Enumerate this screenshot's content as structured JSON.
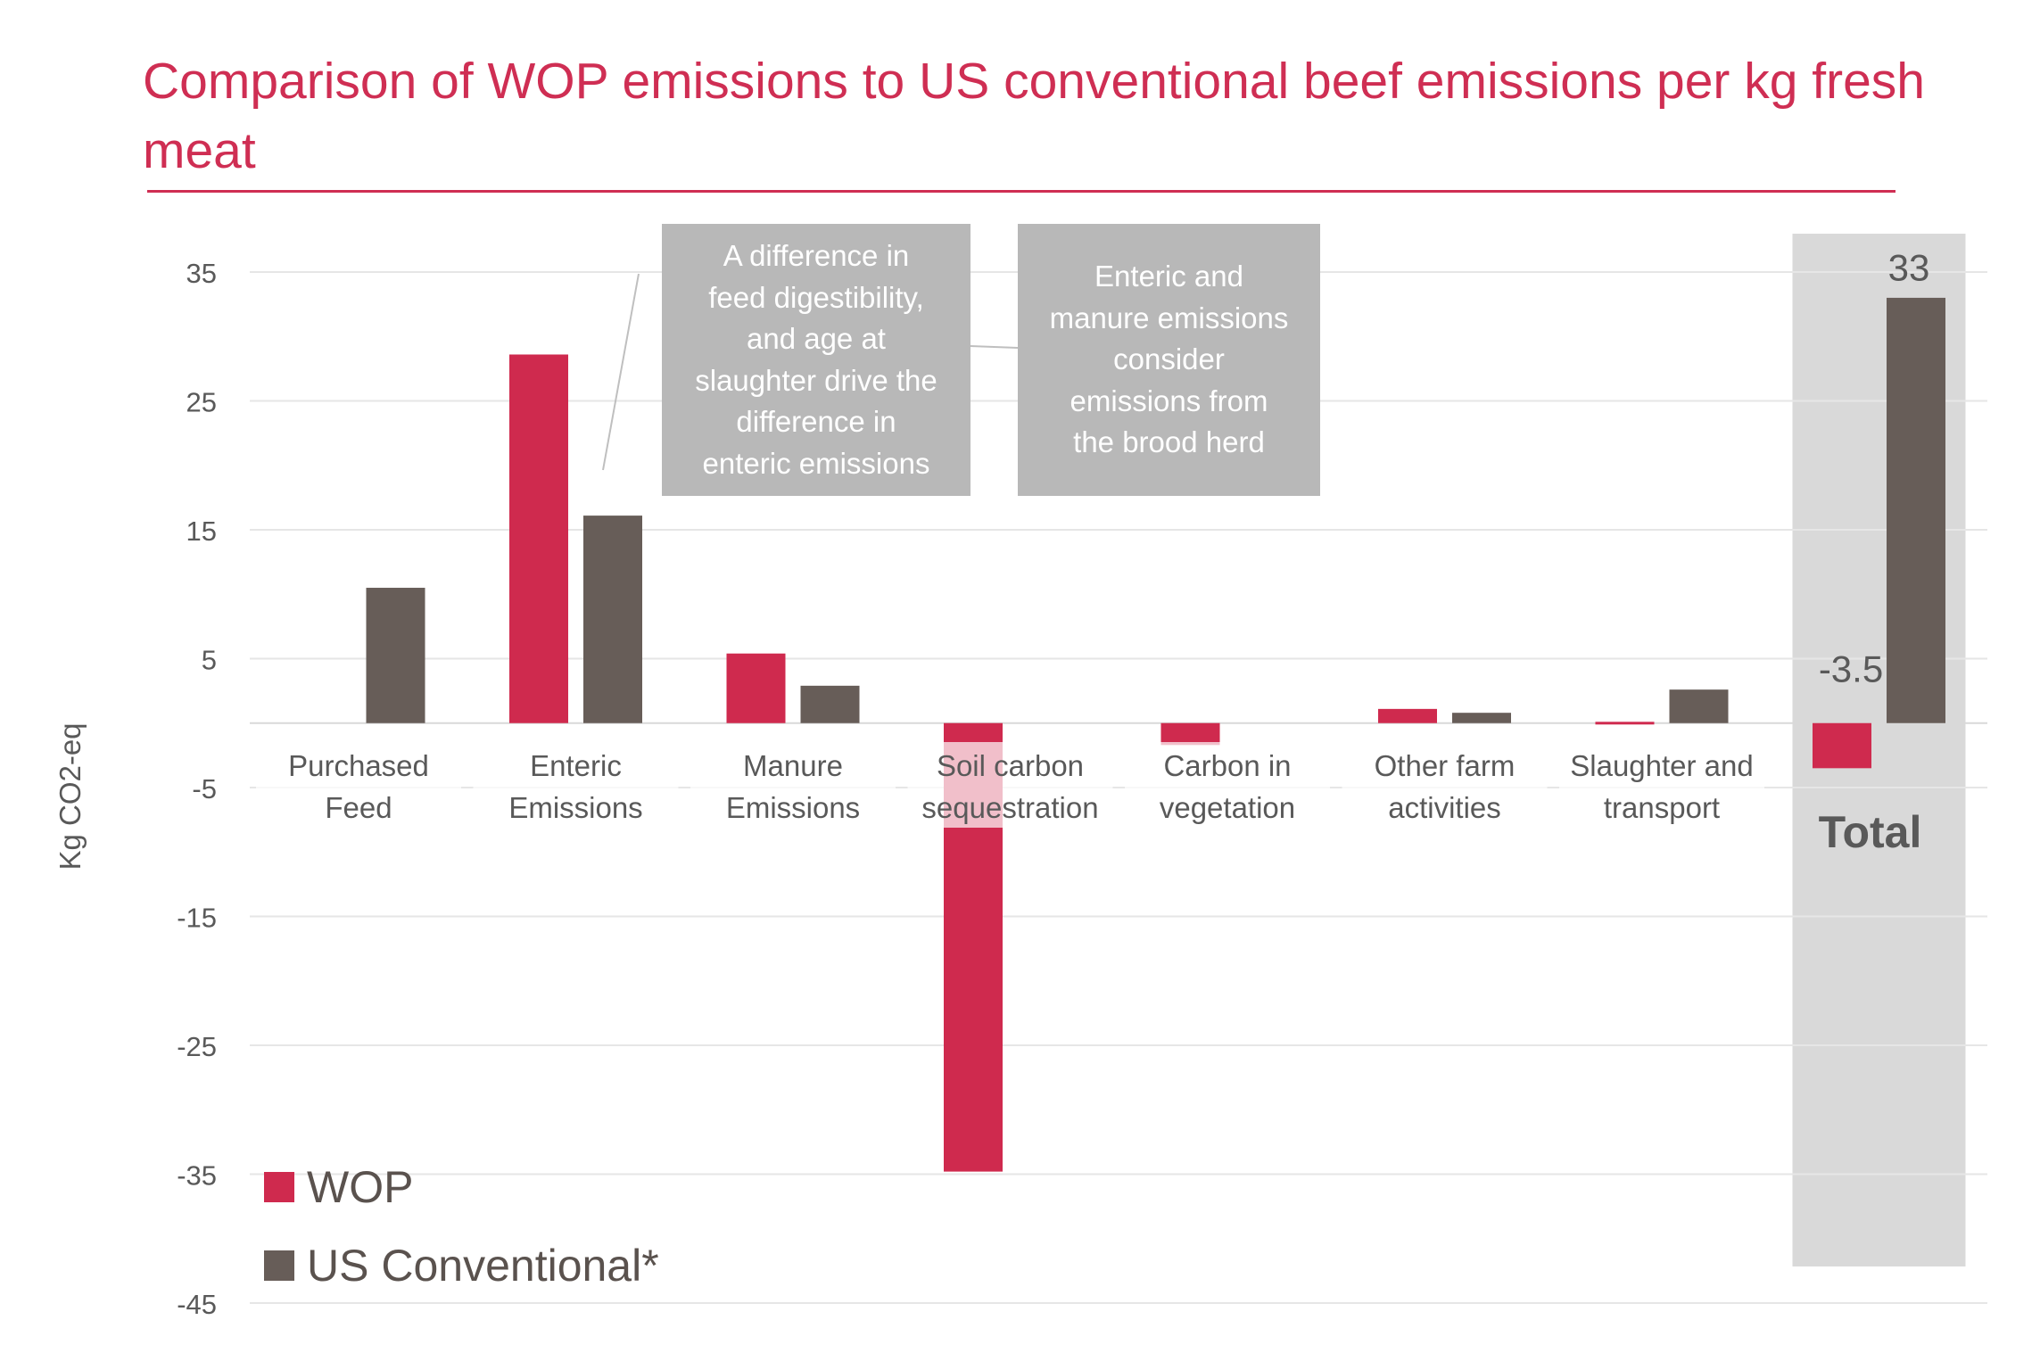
{
  "title": "Comparison of WOP emissions to US conventional beef emissions per kg fresh meat",
  "colors": {
    "wop": "#cf2a4e",
    "us": "#675d58",
    "accent": "#cf2e53",
    "total_bg": "#d9d9d9",
    "callout_bg": "#b8b8b8"
  },
  "callouts": [
    {
      "text": "A difference in\nfeed digestibility,\nand age at\nslaughter drive the\ndifference in\nenteric emissions"
    },
    {
      "text": "Enteric and\nmanure emissions\nconsider\nemissions from\nthe brood herd"
    }
  ],
  "legend": [
    {
      "label": "WOP",
      "color": "#cf2a4e"
    },
    {
      "label": "US Conventional*",
      "color": "#675d58"
    }
  ],
  "total_label": "Total",
  "chart_data": {
    "type": "bar",
    "ylabel": "Kg CO2-eq",
    "ylim": [
      -45,
      35
    ],
    "yticks": [
      35,
      25,
      15,
      5,
      -5,
      -15,
      -25,
      -35,
      -45
    ],
    "categories": [
      [
        "Purchased",
        "Feed"
      ],
      [
        "Enteric",
        "Emissions"
      ],
      [
        "Manure",
        "Emissions"
      ],
      [
        "Soil carbon",
        "sequestration"
      ],
      [
        "Carbon in",
        "vegetation"
      ],
      [
        "Other farm",
        "activities"
      ],
      [
        "Slaughter and",
        "transport"
      ],
      [
        "Total"
      ]
    ],
    "series": [
      {
        "name": "WOP",
        "values": [
          0,
          28.6,
          5.4,
          -34.8,
          -1.7,
          1.1,
          0.1,
          -3.5
        ]
      },
      {
        "name": "US Conventional*",
        "values": [
          10.5,
          16.1,
          2.9,
          0,
          0,
          0.8,
          2.6,
          33
        ]
      }
    ],
    "data_labels": [
      "-3.5",
      "33"
    ],
    "grid": true,
    "legend_position": "bottom-left"
  }
}
